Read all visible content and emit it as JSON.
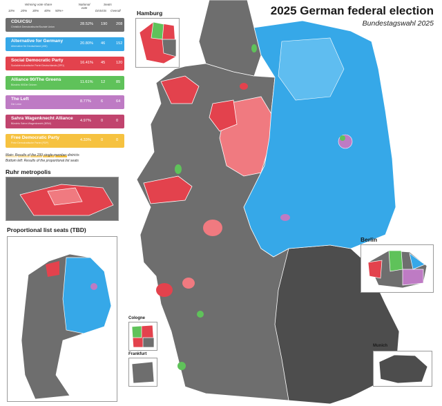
{
  "title": "2025 German federal election",
  "subtitle": "Bundestagswahl 2025",
  "legend": {
    "vote_share_header": "Winning vote share",
    "vote_share_ticks": [
      "10%",
      "20%",
      "30%",
      "40%",
      "50%+"
    ],
    "national_vote_header": "National vote",
    "seats_header": "Seats",
    "districts_header": "Districts",
    "overall_header": "Overall"
  },
  "parties": [
    {
      "name": "CDU/CSU",
      "sub": "Christlich Demokratische/Soziale Union",
      "vote": "28.52%",
      "districts": "190",
      "overall": "208",
      "color": "#6e6e6e"
    },
    {
      "name": "Alternative for Germany",
      "sub": "Alternative für Deutschland (AfD)",
      "vote": "20.80%",
      "districts": "46",
      "overall": "152",
      "color": "#36a8e8"
    },
    {
      "name": "Social Democratic Party",
      "sub": "Sozialdemokratische Partei Deutschlands (SPD)",
      "vote": "16.41%",
      "districts": "45",
      "overall": "120",
      "color": "#e3424d"
    },
    {
      "name": "Alliance 90/The Greens",
      "sub": "Bündnis 90/Die Grünen",
      "vote": "11.61%",
      "districts": "12",
      "overall": "85",
      "color": "#5fc25a"
    },
    {
      "name": "The Left",
      "sub": "Die Linke",
      "vote": "8.77%",
      "districts": "6",
      "overall": "64",
      "color": "#be7bc4"
    },
    {
      "name": "Sahra Wagenknecht Alliance",
      "sub": "Bündnis Sahra Wagenknecht (BSW)",
      "vote": "4.97%",
      "districts": "0",
      "overall": "0",
      "color": "#c1446e"
    },
    {
      "name": "Free Democratic Party",
      "sub": "Freie Demokratische Partei (FDP)",
      "vote": "4.33%",
      "districts": "0",
      "overall": "0",
      "color": "#f6c240"
    }
  ],
  "notes": [
    "Main: Results of the 299 single-member districts",
    "Bottom left: Results of the proportional list seats"
  ],
  "insets": {
    "ruhr": "Ruhr metropolis",
    "proportional": "Proportional list seats (TBD)",
    "hamburg": "Hamburg",
    "berlin": "Berlin",
    "cologne": "Cologne",
    "frankfurt": "Frankfurt",
    "munich": "Munich"
  },
  "colors": {
    "cdu_dark": "#4d4d4d",
    "cdu": "#6e6e6e",
    "cdu_light": "#8a8a8a",
    "afd": "#36a8e8",
    "afd_light": "#5fbdf0",
    "spd": "#e3424d",
    "spd_light": "#f07a80",
    "green": "#5fc25a",
    "left": "#be7bc4",
    "bsw": "#c1446e",
    "fdp": "#f6c240"
  }
}
